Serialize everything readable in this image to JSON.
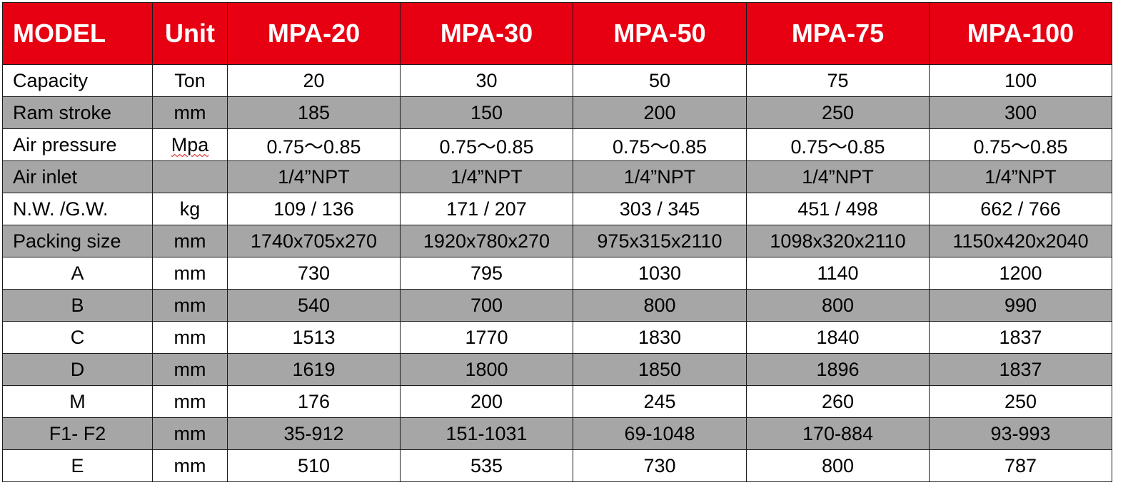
{
  "header": {
    "model_label": "MODEL",
    "unit_label": "Unit",
    "models": [
      "MPA-20",
      "MPA-30",
      "MPA-50",
      "MPA-75",
      "MPA-100"
    ]
  },
  "rows": [
    {
      "label": "Capacity",
      "label_align": "left",
      "unit": "Ton",
      "values": [
        "20",
        "30",
        "50",
        "75",
        "100"
      ],
      "shade": false
    },
    {
      "label": "Ram stroke",
      "label_align": "left",
      "unit": "mm",
      "values": [
        "185",
        "150",
        "200",
        "250",
        "300"
      ],
      "shade": true
    },
    {
      "label": "Air pressure",
      "label_align": "left",
      "unit": "Mpa",
      "values": [
        "0.75～0.85",
        "0.75～0.85",
        "0.75～0.85",
        "0.75～0.85",
        "0.75～0.85"
      ],
      "shade": false
    },
    {
      "label": "Air inlet",
      "label_align": "left",
      "unit": "",
      "values": [
        "1/4”NPT",
        "1/4”NPT",
        "1/4”NPT",
        "1/4”NPT",
        "1/4”NPT"
      ],
      "shade": true
    },
    {
      "label": "N.W. /G.W.",
      "label_align": "left",
      "unit": "kg",
      "values": [
        "109 / 136",
        "171 / 207",
        "303 / 345",
        "451 / 498",
        "662 / 766"
      ],
      "shade": false
    },
    {
      "label": "Packing size",
      "label_align": "left",
      "unit": "mm",
      "values": [
        "1740x705x270",
        "1920x780x270",
        "975x315x2110",
        "1098x320x2110",
        "1150x420x2040"
      ],
      "shade": true
    },
    {
      "label": "A",
      "label_align": "center",
      "unit": "mm",
      "values": [
        "730",
        "795",
        "1030",
        "1140",
        "1200"
      ],
      "shade": false
    },
    {
      "label": "B",
      "label_align": "center",
      "unit": "mm",
      "values": [
        "540",
        "700",
        "800",
        "800",
        "990"
      ],
      "shade": true
    },
    {
      "label": "C",
      "label_align": "center",
      "unit": "mm",
      "values": [
        "1513",
        "1770",
        "1830",
        "1840",
        "1837"
      ],
      "shade": false
    },
    {
      "label": "D",
      "label_align": "center",
      "unit": "mm",
      "values": [
        "1619",
        "1800",
        "1850",
        "1896",
        "1837"
      ],
      "shade": true
    },
    {
      "label": "M",
      "label_align": "center",
      "unit": "mm",
      "values": [
        "176",
        "200",
        "245",
        "260",
        "250"
      ],
      "shade": false
    },
    {
      "label": "F1- F2",
      "label_align": "center",
      "unit": "mm",
      "values": [
        "35-912",
        "151-1031",
        "69-1048",
        "170-884",
        "93-993"
      ],
      "shade": true
    },
    {
      "label": "E",
      "label_align": "center",
      "unit": "mm",
      "values": [
        "510",
        "535",
        "730",
        "800",
        "787"
      ],
      "shade": false
    }
  ],
  "colors": {
    "header_bg": "#e60012",
    "header_text": "#ffffff",
    "shade_row": "#a6a6a6",
    "white_row": "#ffffff",
    "border": "#1a1a1a",
    "spellcheck_underline": "#d40000"
  }
}
